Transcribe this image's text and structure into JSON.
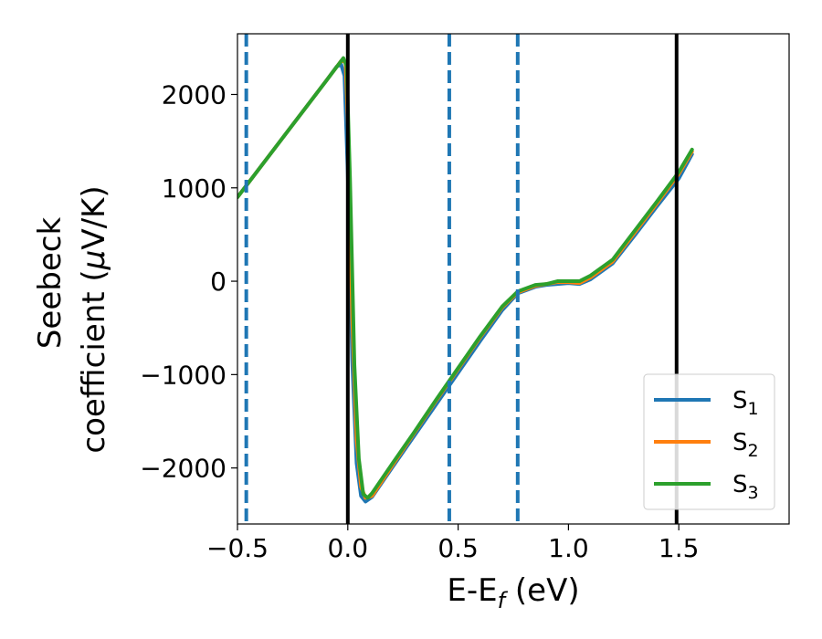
{
  "chart_data": {
    "type": "line",
    "title": "",
    "xlabel": "E-E",
    "xlabel_sub": "f",
    "xlabel_unit": " (eV)",
    "ylabel_line1": "Seebeck",
    "ylabel_line2_a": "coefficient  (",
    "ylabel_mu": "μ",
    "ylabel_line2_b": "V/K)",
    "xlim": [
      -0.5,
      2.0
    ],
    "ylim": [
      -2600,
      2650
    ],
    "xticks": [
      -0.5,
      0.0,
      0.5,
      1.0,
      1.5
    ],
    "xtick_labels": [
      "−0.5",
      "0.0",
      "0.5",
      "1.0",
      "1.5"
    ],
    "yticks": [
      -2000,
      -1000,
      0,
      1000,
      2000
    ],
    "ytick_labels": [
      "−2000",
      "−1000",
      "0",
      "1000",
      "2000"
    ],
    "grid": false,
    "legend_position": "bottom-right",
    "vlines_solid": [
      0.0,
      1.49
    ],
    "vlines_dashed": [
      -0.46,
      0.46,
      0.77
    ],
    "vline_solid_color": "#000000",
    "vline_dashed_color": "#1f77b4",
    "series": [
      {
        "name": "S",
        "sub": "1",
        "color": "#1f77b4",
        "x": [
          -0.5,
          -0.3,
          -0.1,
          -0.05,
          -0.03,
          -0.015,
          0.0,
          0.02,
          0.04,
          0.06,
          0.08,
          0.11,
          0.2,
          0.3,
          0.4,
          0.5,
          0.6,
          0.7,
          0.77,
          0.85,
          0.9,
          0.95,
          1.0,
          1.05,
          1.1,
          1.2,
          1.3,
          1.4,
          1.5,
          1.56
        ],
        "y": [
          900,
          1520,
          2140,
          2300,
          2320,
          2200,
          1150,
          -850,
          -1950,
          -2300,
          -2360,
          -2310,
          -2000,
          -1660,
          -1320,
          -980,
          -640,
          -310,
          -130,
          -60,
          -40,
          -30,
          -20,
          -30,
          20,
          190,
          490,
          800,
          1100,
          1360
        ]
      },
      {
        "name": "S",
        "sub": "2",
        "color": "#ff7f0e",
        "x": [
          -0.5,
          -0.3,
          -0.1,
          -0.03,
          -0.01,
          0.0,
          0.02,
          0.04,
          0.06,
          0.08,
          0.11,
          0.2,
          0.3,
          0.4,
          0.5,
          0.6,
          0.7,
          0.77,
          0.85,
          0.9,
          0.95,
          1.0,
          1.05,
          1.1,
          1.2,
          1.3,
          1.4,
          1.5,
          1.56
        ],
        "y": [
          900,
          1520,
          2140,
          2360,
          2350,
          1700,
          -400,
          -1700,
          -2200,
          -2320,
          -2300,
          -1980,
          -1630,
          -1280,
          -940,
          -600,
          -280,
          -120,
          -50,
          -30,
          -10,
          -10,
          -20,
          40,
          210,
          520,
          830,
          1150,
          1390
        ]
      },
      {
        "name": "S",
        "sub": "3",
        "color": "#2ca02c",
        "x": [
          -0.5,
          -0.3,
          -0.1,
          -0.02,
          -0.005,
          0.01,
          0.03,
          0.05,
          0.07,
          0.09,
          0.11,
          0.2,
          0.3,
          0.4,
          0.5,
          0.6,
          0.7,
          0.77,
          0.85,
          0.9,
          0.95,
          1.0,
          1.05,
          1.1,
          1.2,
          1.3,
          1.4,
          1.5,
          1.56
        ],
        "y": [
          900,
          1520,
          2140,
          2390,
          2300,
          1100,
          -900,
          -1900,
          -2280,
          -2320,
          -2270,
          -1960,
          -1620,
          -1270,
          -930,
          -590,
          -270,
          -110,
          -40,
          -30,
          0,
          0,
          0,
          60,
          230,
          540,
          850,
          1170,
          1410
        ]
      }
    ]
  }
}
